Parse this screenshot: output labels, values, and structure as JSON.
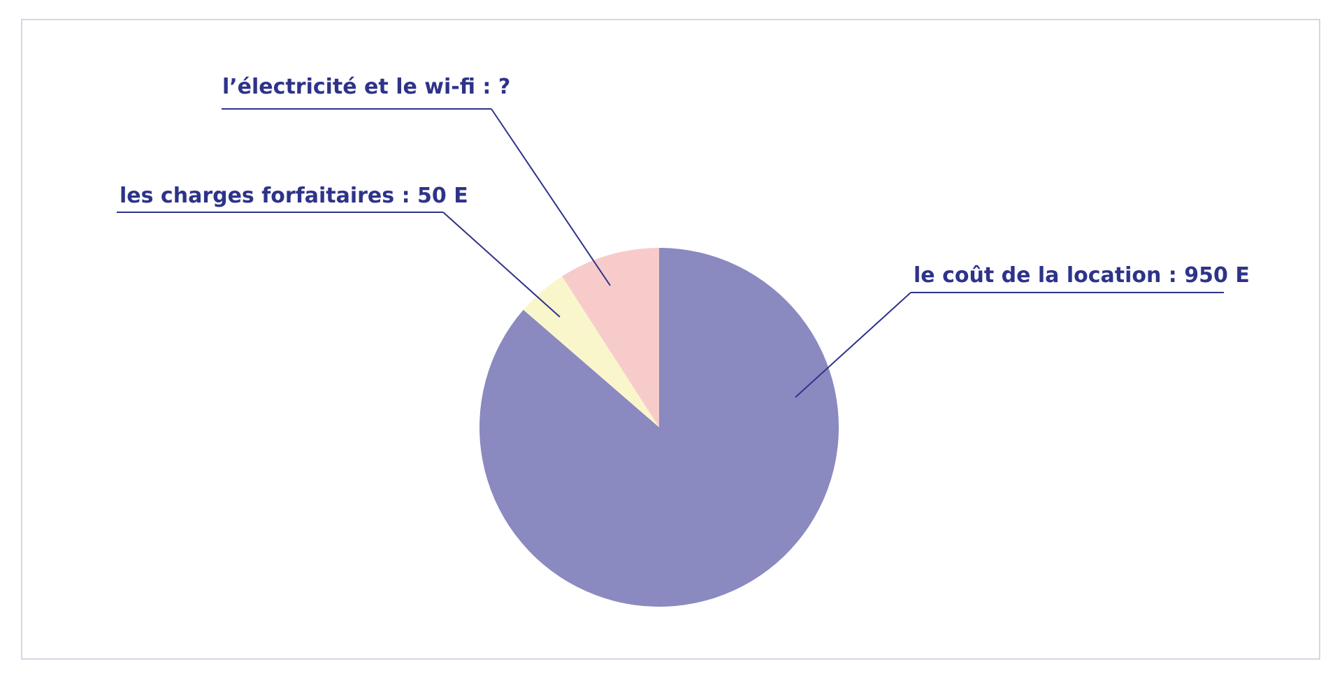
{
  "chart_data": {
    "type": "pie",
    "categories": [
      "le coût de la location : 950 E",
      "les charges forfaitaires : 50 E",
      "l’électricité et le wi-fi : ?"
    ],
    "values": [
      950,
      50,
      100
    ],
    "colors": [
      "#8a89c0",
      "#faf6cc",
      "#f8cbcb"
    ]
  }
}
